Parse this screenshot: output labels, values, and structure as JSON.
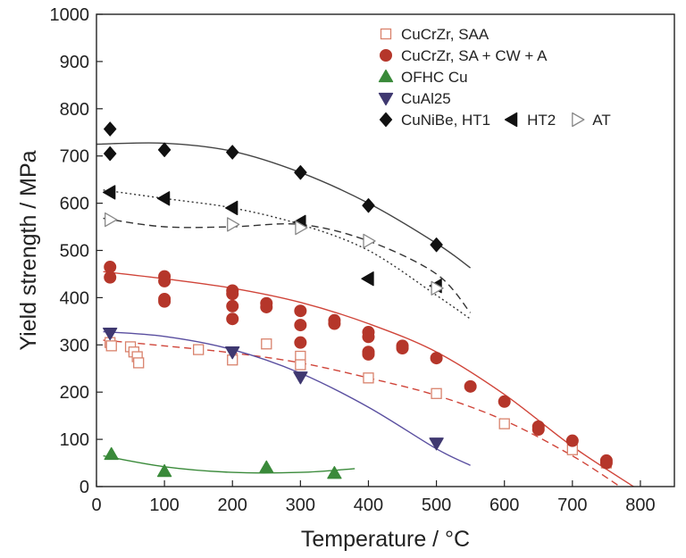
{
  "chart_data": {
    "type": "scatter",
    "xlabel": "Temperature / °C",
    "ylabel": "Yield strength / MPa",
    "xlim": [
      0,
      850
    ],
    "ylim": [
      0,
      1000
    ],
    "xticks": [
      0,
      100,
      200,
      300,
      400,
      500,
      600,
      700,
      800
    ],
    "yticks": [
      0,
      100,
      200,
      300,
      400,
      500,
      600,
      700,
      800,
      900,
      1000
    ],
    "grid": false,
    "legend_position": "top-right",
    "series": [
      {
        "name": "CuCrZr, SAA",
        "marker": "open-square",
        "color": "#d9826c",
        "points": [
          [
            20,
            305
          ],
          [
            22,
            298
          ],
          [
            50,
            296
          ],
          [
            55,
            285
          ],
          [
            60,
            275
          ],
          [
            62,
            262
          ],
          [
            150,
            290
          ],
          [
            200,
            268
          ],
          [
            250,
            302
          ],
          [
            300,
            276
          ],
          [
            300,
            258
          ],
          [
            400,
            230
          ],
          [
            500,
            197
          ],
          [
            600,
            133
          ],
          [
            700,
            78
          ],
          [
            750,
            50
          ]
        ],
        "fit": {
          "style": "dashed",
          "color": "#d0453a",
          "points": [
            [
              10,
              310
            ],
            [
              100,
              298
            ],
            [
              200,
              283
            ],
            [
              300,
              262
            ],
            [
              400,
              230
            ],
            [
              500,
              193
            ],
            [
              600,
              140
            ],
            [
              700,
              65
            ],
            [
              770,
              0
            ]
          ]
        }
      },
      {
        "name": "CuCrZr, SA + CW + A",
        "marker": "filled-circle",
        "color": "#b5362a",
        "points": [
          [
            20,
            465
          ],
          [
            20,
            443
          ],
          [
            100,
            445
          ],
          [
            100,
            435
          ],
          [
            100,
            397
          ],
          [
            100,
            392
          ],
          [
            200,
            415
          ],
          [
            200,
            408
          ],
          [
            200,
            382
          ],
          [
            200,
            355
          ],
          [
            250,
            388
          ],
          [
            250,
            380
          ],
          [
            300,
            372
          ],
          [
            300,
            342
          ],
          [
            300,
            305
          ],
          [
            350,
            352
          ],
          [
            350,
            345
          ],
          [
            400,
            327
          ],
          [
            400,
            317
          ],
          [
            400,
            285
          ],
          [
            400,
            280
          ],
          [
            450,
            298
          ],
          [
            450,
            293
          ],
          [
            500,
            272
          ],
          [
            550,
            212
          ],
          [
            600,
            180
          ],
          [
            650,
            127
          ],
          [
            650,
            121
          ],
          [
            700,
            97
          ],
          [
            750,
            55
          ],
          [
            750,
            50
          ]
        ],
        "fit": {
          "style": "solid",
          "color": "#d0453a",
          "points": [
            [
              10,
              455
            ],
            [
              100,
              440
            ],
            [
              200,
              420
            ],
            [
              300,
              390
            ],
            [
              400,
              345
            ],
            [
              500,
              285
            ],
            [
              600,
              195
            ],
            [
              700,
              85
            ],
            [
              790,
              0
            ]
          ]
        }
      },
      {
        "name": "OFHC Cu",
        "marker": "filled-triangle-up",
        "color": "#3a8a3a",
        "points": [
          [
            22,
            68
          ],
          [
            100,
            32
          ],
          [
            250,
            40
          ],
          [
            350,
            28
          ]
        ],
        "fit": {
          "style": "solid",
          "color": "#3a8a3a",
          "points": [
            [
              10,
              65
            ],
            [
              100,
              42
            ],
            [
              200,
              30
            ],
            [
              300,
              30
            ],
            [
              380,
              38
            ]
          ]
        }
      },
      {
        "name": "CuAl25",
        "marker": "filled-triangle-down",
        "color": "#3f3870",
        "points": [
          [
            20,
            325
          ],
          [
            200,
            285
          ],
          [
            300,
            232
          ],
          [
            500,
            92
          ]
        ],
        "fit": {
          "style": "solid",
          "color": "#5a4fa0",
          "points": [
            [
              10,
              328
            ],
            [
              100,
              318
            ],
            [
              200,
              290
            ],
            [
              300,
              240
            ],
            [
              400,
              168
            ],
            [
              500,
              80
            ],
            [
              550,
              45
            ]
          ]
        }
      },
      {
        "name": "CuNiBe, HT1",
        "marker": "filled-diamond",
        "color": "#111111",
        "points": [
          [
            20,
            757
          ],
          [
            20,
            705
          ],
          [
            100,
            713
          ],
          [
            200,
            708
          ],
          [
            300,
            665
          ],
          [
            400,
            595
          ],
          [
            500,
            512
          ]
        ],
        "fit": {
          "style": "solid",
          "color": "#444444",
          "points": [
            [
              0,
              725
            ],
            [
              100,
              727
            ],
            [
              200,
              710
            ],
            [
              300,
              665
            ],
            [
              400,
              600
            ],
            [
              500,
              515
            ],
            [
              550,
              463
            ]
          ]
        }
      },
      {
        "name": "HT2",
        "marker": "filled-triangle-left",
        "color": "#111111",
        "points": [
          [
            20,
            623
          ],
          [
            100,
            610
          ],
          [
            200,
            590
          ],
          [
            300,
            560
          ],
          [
            400,
            440
          ],
          [
            500,
            425
          ]
        ],
        "fit": {
          "style": "dotted",
          "color": "#333333",
          "points": [
            [
              10,
              628
            ],
            [
              100,
              610
            ],
            [
              200,
              590
            ],
            [
              300,
              555
            ],
            [
              400,
              500
            ],
            [
              500,
              405
            ],
            [
              550,
              355
            ]
          ]
        }
      },
      {
        "name": "AT",
        "marker": "open-triangle-right",
        "color": "#888888",
        "points": [
          [
            20,
            565
          ],
          [
            200,
            555
          ],
          [
            300,
            548
          ],
          [
            400,
            520
          ],
          [
            500,
            420
          ]
        ],
        "fit": {
          "style": "dashed",
          "color": "#333333",
          "points": [
            [
              10,
              568
            ],
            [
              100,
              550
            ],
            [
              200,
              550
            ],
            [
              300,
              555
            ],
            [
              400,
              520
            ],
            [
              500,
              450
            ],
            [
              550,
              368
            ]
          ]
        }
      }
    ]
  },
  "legend": {
    "rows": [
      {
        "items": [
          {
            "marker": "open-square",
            "color": "#d9826c",
            "label": "CuCrZr, SAA"
          }
        ]
      },
      {
        "items": [
          {
            "marker": "filled-circle",
            "color": "#b5362a",
            "label": "CuCrZr, SA + CW + A"
          }
        ]
      },
      {
        "items": [
          {
            "marker": "filled-triangle-up",
            "color": "#3a8a3a",
            "label": "OFHC Cu"
          }
        ]
      },
      {
        "items": [
          {
            "marker": "filled-triangle-down",
            "color": "#3f3870",
            "label": "CuAl25"
          }
        ]
      },
      {
        "items": [
          {
            "marker": "filled-diamond",
            "color": "#111111",
            "label": "CuNiBe, HT1"
          },
          {
            "marker": "filled-triangle-left",
            "color": "#111111",
            "label": "HT2"
          },
          {
            "marker": "open-triangle-right",
            "color": "#888888",
            "label": "AT"
          }
        ]
      }
    ]
  }
}
